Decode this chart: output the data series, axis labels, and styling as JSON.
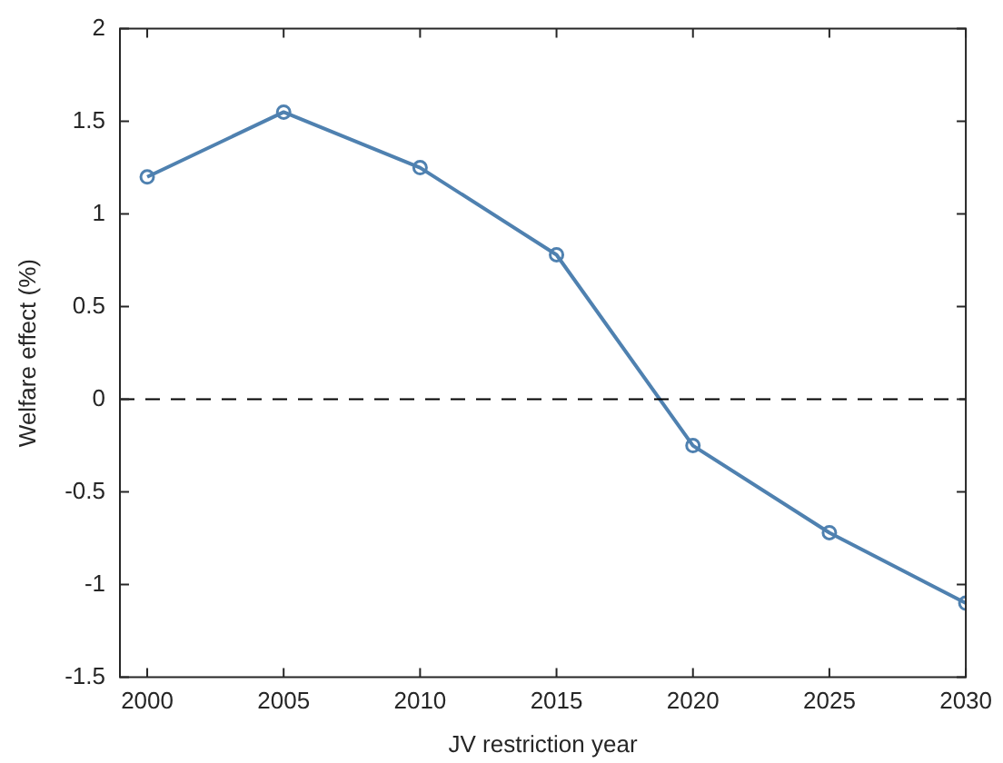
{
  "chart_data": {
    "type": "line",
    "xlabel": "JV restriction year",
    "ylabel": "Welfare effect (%)",
    "x": [
      2000,
      2005,
      2010,
      2015,
      2020,
      2025,
      2030
    ],
    "series": [
      {
        "color": "#4f81b0",
        "values": [
          1.2,
          1.55,
          1.25,
          0.78,
          -0.25,
          -0.72,
          -1.1
        ]
      }
    ],
    "xlim": [
      1999,
      2030
    ],
    "xticks": [
      2000,
      2005,
      2010,
      2015,
      2020,
      2025,
      2030
    ],
    "ylim": [
      -1.5,
      2
    ],
    "yticks": [
      -1.5,
      -1,
      -0.5,
      0,
      0.5,
      1,
      1.5,
      2
    ],
    "ref_lines": [
      {
        "axis": "y",
        "value": 0,
        "color": "#000000",
        "line_style": "dashed"
      }
    ],
    "marker": "circle",
    "line_style": "solid",
    "grid": false,
    "legend": false
  }
}
